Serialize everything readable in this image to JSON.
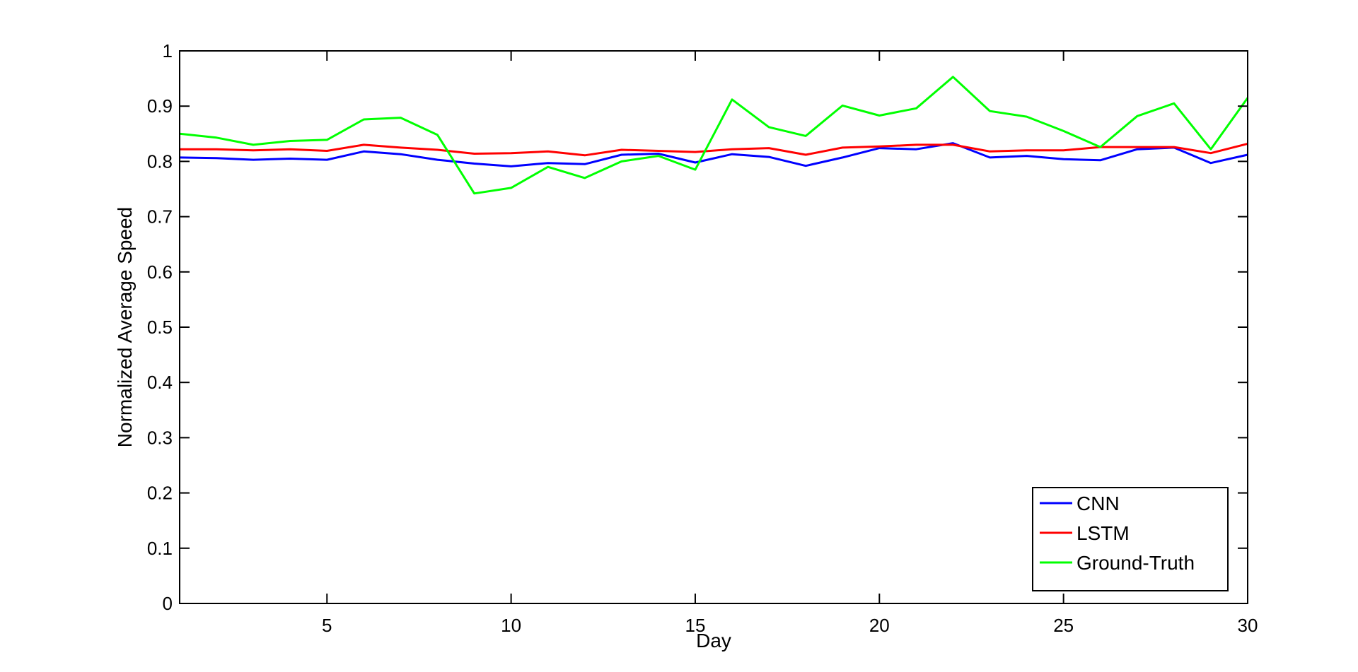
{
  "chart_data": {
    "type": "line",
    "xlabel": "Day",
    "ylabel": "Normalized Average Speed",
    "xlim": [
      1,
      30
    ],
    "ylim": [
      0,
      1
    ],
    "xticks": [
      5,
      10,
      15,
      20,
      25,
      30
    ],
    "yticks": [
      0,
      0.1,
      0.2,
      0.3,
      0.4,
      0.5,
      0.6,
      0.7,
      0.8,
      0.9,
      1
    ],
    "ytick_labels": [
      "0",
      "0.1",
      "0.2",
      "0.3",
      "0.4",
      "0.5",
      "0.6",
      "0.7",
      "0.8",
      "0.9",
      "1"
    ],
    "grid": false,
    "legend_position": "bottom-right",
    "x": [
      1,
      2,
      3,
      4,
      5,
      6,
      7,
      8,
      9,
      10,
      11,
      12,
      13,
      14,
      15,
      16,
      17,
      18,
      19,
      20,
      21,
      22,
      23,
      24,
      25,
      26,
      27,
      28,
      29,
      30
    ],
    "series": [
      {
        "name": "CNN",
        "color": "#0000ff",
        "values": [
          0.807,
          0.806,
          0.803,
          0.805,
          0.803,
          0.818,
          0.813,
          0.803,
          0.796,
          0.791,
          0.797,
          0.795,
          0.812,
          0.814,
          0.798,
          0.813,
          0.808,
          0.792,
          0.807,
          0.824,
          0.822,
          0.833,
          0.807,
          0.81,
          0.804,
          0.802,
          0.822,
          0.825,
          0.797,
          0.812
        ]
      },
      {
        "name": "LSTM",
        "color": "#ff0000",
        "values": [
          0.822,
          0.822,
          0.82,
          0.822,
          0.819,
          0.83,
          0.825,
          0.821,
          0.814,
          0.815,
          0.818,
          0.811,
          0.821,
          0.819,
          0.817,
          0.822,
          0.824,
          0.812,
          0.825,
          0.827,
          0.83,
          0.83,
          0.818,
          0.82,
          0.82,
          0.826,
          0.826,
          0.826,
          0.815,
          0.832
        ]
      },
      {
        "name": "Ground-Truth",
        "color": "#00ff00",
        "values": [
          0.85,
          0.843,
          0.83,
          0.837,
          0.839,
          0.876,
          0.879,
          0.848,
          0.742,
          0.752,
          0.79,
          0.77,
          0.8,
          0.81,
          0.785,
          0.912,
          0.862,
          0.846,
          0.901,
          0.883,
          0.896,
          0.953,
          0.891,
          0.881,
          0.855,
          0.826,
          0.882,
          0.905,
          0.822,
          0.915
        ]
      }
    ]
  }
}
